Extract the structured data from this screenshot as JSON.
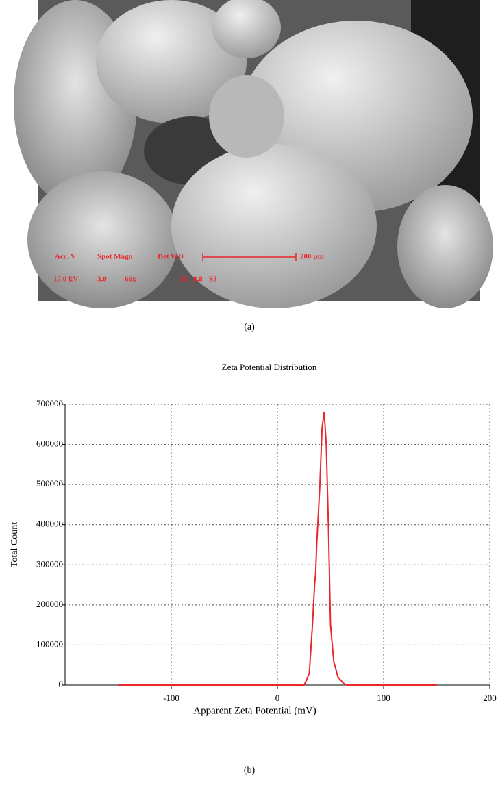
{
  "sem_image": {
    "overlay": [
      "Acc. V",
      "Spot Magn",
      "Det WD",
      "200 µm",
      "17.0 kV",
      "3.0",
      "66x",
      "SE",
      "8.8",
      "S3"
    ],
    "caption": "(a)"
  },
  "chart_data": {
    "type": "line",
    "title": "Zeta Potential Distribution",
    "x_label": "Apparent Zeta Potential (mV)",
    "y_label": "Total Count",
    "x": [
      -150,
      25,
      27,
      30,
      33,
      35,
      36,
      37,
      40,
      42,
      44,
      46,
      48,
      50,
      53,
      57,
      62,
      65,
      150
    ],
    "values": [
      0,
      0,
      10000,
      30000,
      150000,
      250000,
      280000,
      350000,
      500000,
      640000,
      680000,
      600000,
      400000,
      150000,
      60000,
      20000,
      5000,
      0,
      0
    ],
    "color": "#e8262b",
    "xlim": [
      -200,
      200
    ],
    "xticks": [
      -100,
      0,
      100,
      200
    ],
    "ylim": [
      0,
      700000
    ],
    "yticks": [
      0,
      100000,
      200000,
      300000,
      400000,
      500000,
      600000,
      700000
    ],
    "grid": true
  },
  "chart_caption": "(b)"
}
